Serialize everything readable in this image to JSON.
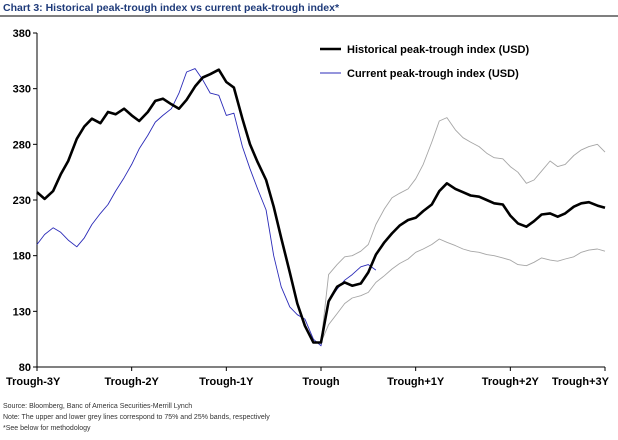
{
  "title": "Chart 3: Historical peak-trough index vs current peak-trough index*",
  "notes": [
    "Source: Bloomberg, Banc  of America Securities-Merrill Lynch",
    "Note: The upper and lower grey lines correspond to 75% and 25% bands, respectively",
    "*See below for methodology"
  ],
  "chart_data": {
    "type": "line",
    "title": "Chart 3: Historical peak-trough index vs current peak-trough index*",
    "xlabel": "",
    "ylabel": "",
    "ylim": [
      80,
      380
    ],
    "yticks": [
      80,
      130,
      180,
      230,
      280,
      330,
      380
    ],
    "xlim": [
      -3,
      3
    ],
    "xticks": [
      -3,
      -2,
      -1,
      0,
      1,
      2,
      3
    ],
    "xtick_labels": [
      "Trough-3Y",
      "Trough-2Y",
      "Trough-1Y",
      "Trough",
      "Trough+1Y",
      "Trough+2Y",
      "Trough+3Y"
    ],
    "grid": false,
    "legend_position": "top-right",
    "series": [
      {
        "name": "Historical peak-trough index (USD)",
        "color": "#000000",
        "style": "solid-thick",
        "x": [
          -3.0,
          -2.92,
          -2.83,
          -2.75,
          -2.67,
          -2.58,
          -2.5,
          -2.42,
          -2.33,
          -2.25,
          -2.17,
          -2.08,
          -2.0,
          -1.92,
          -1.83,
          -1.75,
          -1.67,
          -1.58,
          -1.5,
          -1.42,
          -1.33,
          -1.25,
          -1.17,
          -1.08,
          -1.0,
          -0.92,
          -0.83,
          -0.75,
          -0.67,
          -0.58,
          -0.5,
          -0.42,
          -0.33,
          -0.25,
          -0.17,
          -0.08,
          0.0,
          0.08,
          0.17,
          0.25,
          0.33,
          0.42,
          0.5,
          0.58,
          0.67,
          0.75,
          0.83,
          0.92,
          1.0,
          1.08,
          1.17,
          1.25,
          1.33,
          1.42,
          1.5,
          1.58,
          1.67,
          1.75,
          1.83,
          1.92,
          2.0,
          2.08,
          2.17,
          2.25,
          2.33,
          2.42,
          2.5,
          2.58,
          2.67,
          2.75,
          2.83,
          2.92,
          3.0
        ],
        "values": [
          237,
          231,
          238,
          253,
          265,
          285,
          296,
          303,
          299,
          309,
          307,
          312,
          306,
          301,
          309,
          319,
          321,
          316,
          312,
          320,
          332,
          340,
          343,
          347,
          336,
          331,
          303,
          280,
          264,
          248,
          224,
          196,
          165,
          137,
          117,
          102,
          102,
          139,
          152,
          156,
          153,
          155,
          165,
          181,
          192,
          200,
          207,
          212,
          214,
          220,
          226,
          238,
          245,
          240,
          237,
          234,
          233,
          230,
          227,
          226,
          216,
          209,
          206,
          211,
          217,
          218,
          215,
          218,
          224,
          227,
          228,
          225,
          223
        ]
      },
      {
        "name": "Current peak-trough index (USD)",
        "color": "#2b2bb8",
        "style": "solid-thin",
        "x": [
          -3.0,
          -2.92,
          -2.83,
          -2.75,
          -2.67,
          -2.58,
          -2.5,
          -2.42,
          -2.33,
          -2.25,
          -2.17,
          -2.08,
          -2.0,
          -1.92,
          -1.83,
          -1.75,
          -1.67,
          -1.58,
          -1.5,
          -1.42,
          -1.33,
          -1.25,
          -1.17,
          -1.08,
          -1.0,
          -0.92,
          -0.83,
          -0.75,
          -0.67,
          -0.58,
          -0.5,
          -0.42,
          -0.33,
          -0.25,
          -0.17,
          -0.08,
          0.0,
          0.08,
          0.17,
          0.25,
          0.33,
          0.42,
          0.5,
          0.58
        ],
        "values": [
          190,
          199,
          205,
          201,
          194,
          188,
          196,
          208,
          218,
          226,
          238,
          250,
          262,
          276,
          288,
          300,
          306,
          312,
          326,
          345,
          348,
          338,
          326,
          324,
          306,
          308,
          278,
          258,
          240,
          221,
          180,
          152,
          134,
          127,
          123,
          105,
          99,
          139,
          150,
          158,
          163,
          170,
          172,
          167
        ]
      },
      {
        "name": "",
        "color": "#a6a6a6",
        "style": "75% band",
        "x": [
          0.0,
          0.08,
          0.17,
          0.25,
          0.33,
          0.42,
          0.5,
          0.58,
          0.67,
          0.75,
          0.83,
          0.92,
          1.0,
          1.08,
          1.17,
          1.25,
          1.33,
          1.42,
          1.5,
          1.58,
          1.67,
          1.75,
          1.83,
          1.92,
          2.0,
          2.08,
          2.17,
          2.25,
          2.33,
          2.42,
          2.5,
          2.58,
          2.67,
          2.75,
          2.83,
          2.92,
          3.0
        ],
        "values": [
          102,
          163,
          172,
          179,
          180,
          184,
          190,
          208,
          222,
          232,
          236,
          240,
          249,
          262,
          282,
          301,
          304,
          293,
          286,
          282,
          278,
          272,
          268,
          267,
          260,
          255,
          245,
          248,
          256,
          265,
          260,
          262,
          270,
          275,
          278,
          280,
          273
        ]
      },
      {
        "name": "",
        "color": "#a6a6a6",
        "style": "25% band",
        "x": [
          0.0,
          0.08,
          0.17,
          0.25,
          0.33,
          0.42,
          0.5,
          0.58,
          0.67,
          0.75,
          0.83,
          0.92,
          1.0,
          1.08,
          1.17,
          1.25,
          1.33,
          1.42,
          1.5,
          1.58,
          1.67,
          1.75,
          1.83,
          1.92,
          2.0,
          2.08,
          2.17,
          2.25,
          2.33,
          2.42,
          2.5,
          2.58,
          2.67,
          2.75,
          2.83,
          2.92,
          3.0
        ],
        "values": [
          102,
          118,
          128,
          137,
          142,
          144,
          147,
          156,
          162,
          168,
          173,
          177,
          183,
          186,
          190,
          195,
          192,
          189,
          186,
          184,
          183,
          181,
          180,
          178,
          176,
          172,
          171,
          174,
          178,
          176,
          175,
          177,
          179,
          183,
          185,
          186,
          184
        ]
      }
    ]
  }
}
